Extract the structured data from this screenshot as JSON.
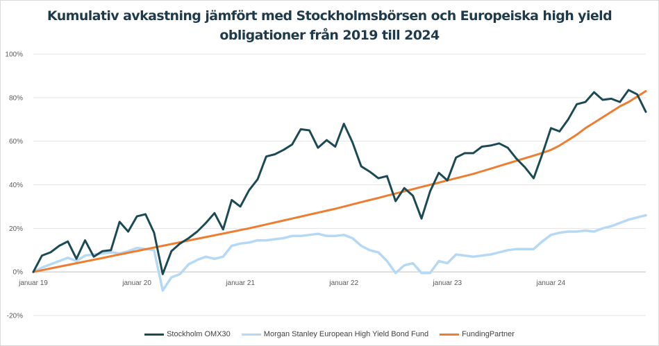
{
  "title_line1": "Kumulativ avkastning jämfört med Stockholmsbörsen och Europeiska high yield",
  "title_line2": "obligationer från 2019 till 2024",
  "chart_data": {
    "type": "line",
    "ylim": [
      -20,
      100
    ],
    "y_ticks": [
      -20,
      0,
      20,
      40,
      60,
      80,
      100
    ],
    "y_tick_labels": [
      "-20%",
      "0%",
      "20%",
      "40%",
      "60%",
      "80%",
      "100%"
    ],
    "x_range": [
      0,
      71
    ],
    "x_ticks": [
      0,
      12,
      24,
      36,
      48,
      60
    ],
    "x_tick_labels": [
      "januar 19",
      "januar 20",
      "januar 21",
      "januar 22",
      "januar 23",
      "januar 24"
    ],
    "grid": true,
    "legend": "bottom",
    "series": [
      {
        "name": "Stockholm OMX30",
        "color": "#1b4a54",
        "values": [
          0,
          7.5,
          9,
          12,
          14,
          6,
          14.5,
          7,
          9.5,
          10,
          23,
          18.5,
          25.5,
          26.5,
          18,
          -1,
          9.5,
          13,
          15.5,
          18.5,
          22.5,
          27,
          19.5,
          33,
          30,
          37.5,
          42.5,
          53,
          54,
          56,
          58.5,
          65.5,
          65,
          57,
          60.5,
          57.5,
          68,
          59.5,
          48.5,
          46,
          43,
          44,
          32.5,
          38.5,
          35,
          24.5,
          37,
          45.5,
          42,
          52.5,
          54.5,
          54.5,
          57.5,
          58,
          59,
          57,
          52,
          48,
          43,
          54,
          66,
          64.5,
          70,
          77,
          78,
          82.5,
          79,
          79.5,
          78,
          83.5,
          81.5,
          73.5
        ]
      },
      {
        "name": "Morgan Stanley European High Yield Bond Fund",
        "color": "#b5d9f5",
        "values": [
          0,
          2,
          3.5,
          5,
          6.5,
          5,
          7.5,
          8,
          8.5,
          9,
          8.5,
          9.5,
          11,
          10.5,
          10,
          -8.5,
          -2.5,
          -1,
          3.5,
          5.5,
          7,
          6,
          7,
          12,
          13,
          13.5,
          14.5,
          14.5,
          15,
          15.5,
          16.5,
          16.5,
          17,
          17.5,
          16.5,
          16.5,
          17,
          15.5,
          12,
          10,
          9,
          5,
          -0.5,
          3,
          4,
          -0.5,
          -0.5,
          5,
          4,
          8,
          7.5,
          7,
          7.5,
          8,
          9,
          10,
          10.5,
          10.5,
          10.5,
          14,
          17,
          18,
          18.5,
          18.5,
          19,
          18.5,
          20,
          21,
          22.5,
          24,
          25,
          26
        ]
      },
      {
        "name": "FundingPartner",
        "color": "#ed7d31",
        "values": [
          0,
          0.8,
          1.6,
          2.4,
          3.2,
          4.0,
          4.8,
          5.6,
          6.4,
          7.2,
          8.0,
          8.8,
          9.6,
          10.4,
          11.2,
          12.0,
          12.8,
          13.6,
          14.4,
          15.2,
          16.0,
          16.8,
          17.6,
          18.4,
          19.2,
          20.0,
          20.9,
          21.8,
          22.7,
          23.6,
          24.5,
          25.4,
          26.3,
          27.2,
          28.1,
          29.0,
          30.0,
          31.0,
          32.0,
          33.0,
          34.0,
          35.0,
          36.0,
          37.0,
          38.0,
          39.0,
          40.0,
          41.0,
          42.0,
          43.0,
          44.0,
          45.0,
          46.2,
          47.4,
          48.6,
          49.8,
          51.0,
          52.2,
          53.4,
          54.6,
          56.0,
          58.0,
          60.5,
          63.0,
          66.0,
          68.5,
          71.0,
          73.5,
          76.0,
          78.0,
          80.5,
          83.0
        ]
      }
    ]
  }
}
